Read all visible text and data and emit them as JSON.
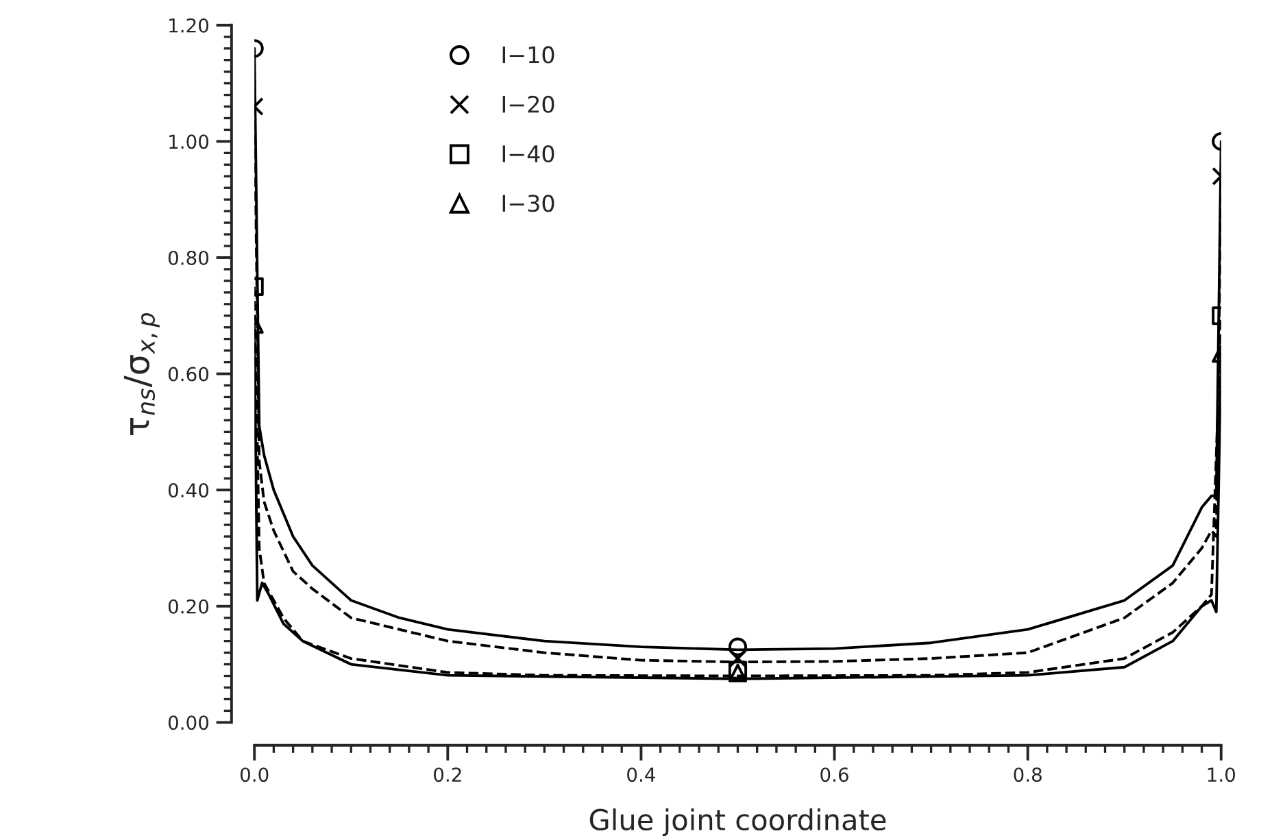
{
  "chart_data": {
    "type": "line",
    "xlabel": "Glue joint coordinate",
    "ylabel": "τ$_{ns}$/σ$_{x,p}$",
    "xlim": [
      0,
      1
    ],
    "ylim": [
      0,
      1.2
    ],
    "xticks": [
      {
        "value": 0,
        "label": "0.0"
      },
      {
        "value": 0.2,
        "label": "0.2"
      },
      {
        "value": 0.4,
        "label": "0.4"
      },
      {
        "value": 0.6,
        "label": "0.6"
      },
      {
        "value": 0.8,
        "label": "0.8"
      },
      {
        "value": 1,
        "label": "1.0"
      }
    ],
    "yticks": [
      {
        "value": 0,
        "label": "0.00"
      },
      {
        "value": 0.2,
        "label": "0.20"
      },
      {
        "value": 0.4,
        "label": "0.40"
      },
      {
        "value": 0.6,
        "label": "0.60"
      },
      {
        "value": 0.8,
        "label": "0.80"
      },
      {
        "value": 1.0,
        "label": "1.00"
      },
      {
        "value": 1.2,
        "label": "1.20"
      }
    ],
    "grid": false,
    "legend": "top",
    "series": [
      {
        "color": "#000000",
        "line_style": "solid",
        "marker": "none",
        "x": [
          0,
          0.005,
          0.01,
          0.02,
          0.04,
          0.06,
          0.1,
          0.15,
          0.2,
          0.3,
          0.4,
          0.5,
          0.6,
          0.7,
          0.8,
          0.9,
          0.95,
          0.98,
          0.99,
          0.995,
          1.0
        ],
        "values": [
          1.16,
          0.51,
          0.46,
          0.4,
          0.32,
          0.27,
          0.21,
          0.18,
          0.16,
          0.14,
          0.13,
          0.125,
          0.127,
          0.137,
          0.16,
          0.21,
          0.27,
          0.37,
          0.39,
          0.39,
          1.0
        ]
      },
      {
        "color": "#000000",
        "line_style": "dashed",
        "marker": "none",
        "x": [
          0,
          0.005,
          0.01,
          0.02,
          0.04,
          0.06,
          0.1,
          0.2,
          0.3,
          0.4,
          0.5,
          0.6,
          0.7,
          0.8,
          0.9,
          0.95,
          0.98,
          0.99,
          0.995,
          1.0
        ],
        "values": [
          1.06,
          0.45,
          0.38,
          0.33,
          0.26,
          0.23,
          0.18,
          0.14,
          0.12,
          0.107,
          0.104,
          0.105,
          0.11,
          0.12,
          0.18,
          0.24,
          0.3,
          0.33,
          0.32,
          0.94
        ]
      },
      {
        "color": "#000000",
        "line_style": "dashed",
        "marker": "none",
        "x": [
          0,
          0.005,
          0.01,
          0.03,
          0.05,
          0.1,
          0.2,
          0.3,
          0.5,
          0.7,
          0.8,
          0.9,
          0.95,
          0.98,
          0.99,
          1.0
        ],
        "values": [
          0.75,
          0.3,
          0.24,
          0.18,
          0.14,
          0.11,
          0.086,
          0.081,
          0.08,
          0.081,
          0.086,
          0.11,
          0.155,
          0.2,
          0.22,
          0.7
        ]
      },
      {
        "color": "#000000",
        "line_style": "solid",
        "marker": "none",
        "x": [
          0,
          0.003,
          0.008,
          0.015,
          0.03,
          0.05,
          0.1,
          0.2,
          0.5,
          0.8,
          0.9,
          0.95,
          0.98,
          0.99,
          0.995,
          1.0
        ],
        "values": [
          0.685,
          0.21,
          0.24,
          0.22,
          0.17,
          0.14,
          0.1,
          0.081,
          0.075,
          0.081,
          0.095,
          0.14,
          0.2,
          0.21,
          0.19,
          0.635
        ]
      },
      {
        "type": "scatter",
        "name": "I−10",
        "color": "#000000",
        "marker": "circle",
        "x": [
          0,
          0.5,
          1
        ],
        "values": [
          1.16,
          0.13,
          1.0
        ]
      },
      {
        "type": "scatter",
        "name": "I−20",
        "color": "#000000",
        "marker": "cross",
        "x": [
          0,
          0.5,
          1
        ],
        "values": [
          1.06,
          0.11,
          0.94
        ]
      },
      {
        "type": "scatter",
        "name": "I−40",
        "color": "#000000",
        "marker": "square",
        "x": [
          0,
          0.5,
          1
        ],
        "values": [
          0.75,
          0.09,
          0.7
        ]
      },
      {
        "type": "scatter",
        "name": "I−30",
        "color": "#000000",
        "marker": "triangle",
        "x": [
          0,
          0.5,
          1
        ],
        "values": [
          0.685,
          0.085,
          0.635
        ]
      }
    ]
  }
}
